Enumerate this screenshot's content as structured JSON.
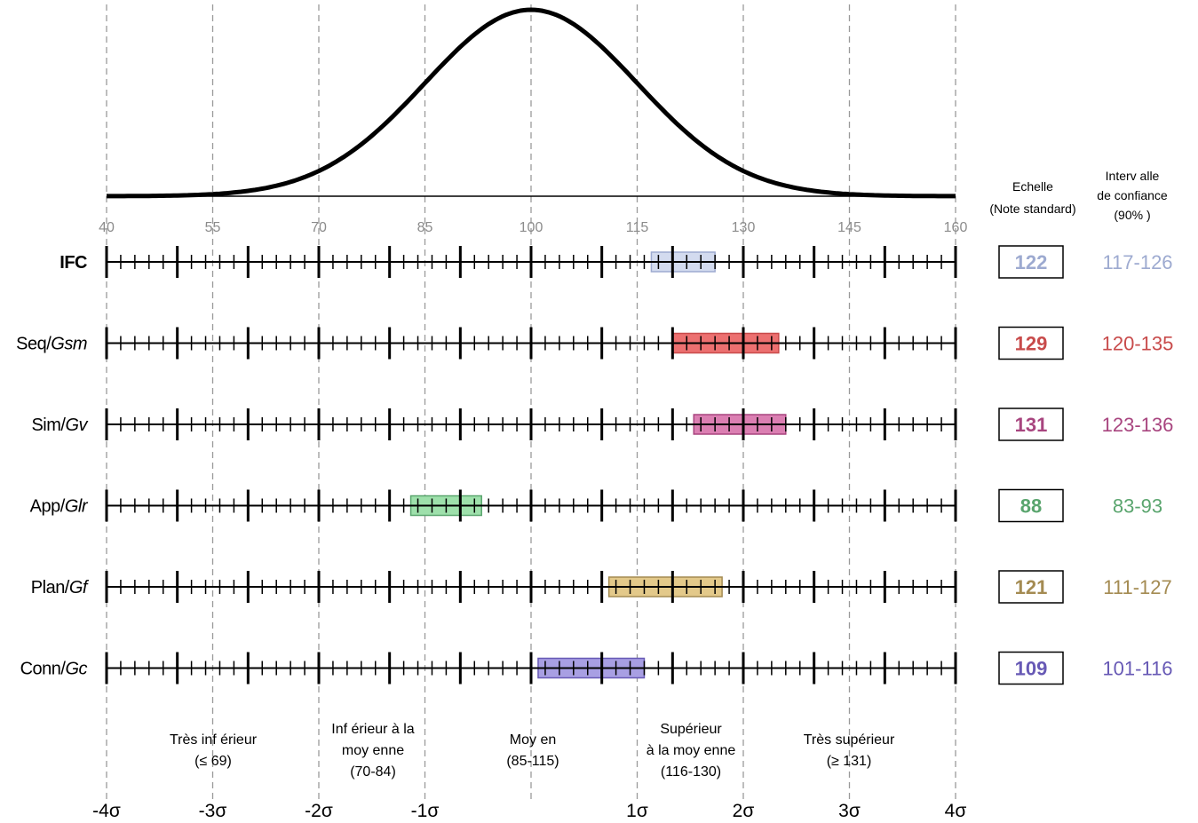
{
  "chart_data": {
    "type": "interval",
    "title": "",
    "axis": {
      "min": 40,
      "max": 160,
      "minor_step": 2,
      "major_step": 10,
      "tick_labels": [
        "40",
        "55",
        "70",
        "85",
        "100",
        "115",
        "130",
        "145",
        "160"
      ],
      "sigma_labels": [
        "-4σ",
        "-3σ",
        "-2σ",
        "-1σ",
        "1σ",
        "2σ",
        "3σ",
        "4σ"
      ],
      "grid_lines": "dashed at each labelled score"
    },
    "curve": {
      "type": "normal",
      "mean": 100,
      "sd": 15
    },
    "header": {
      "scale": [
        "Echelle",
        "(Note standard)"
      ],
      "confidence": [
        "Interv alle",
        "de confiance",
        "(90% )"
      ]
    },
    "rows": [
      {
        "label": "IFC",
        "label_italic": "",
        "bold": true,
        "score": "122",
        "interval": "117-126",
        "low": 117,
        "high": 126,
        "color": "#9daad0",
        "fill": "#d3dbef"
      },
      {
        "label": "Seq/",
        "label_italic": "Gsm",
        "bold": false,
        "score": "129",
        "interval": "120-135",
        "low": 120,
        "high": 135,
        "color": "#c84b4b",
        "fill": "#ec7070"
      },
      {
        "label": "Sim/",
        "label_italic": "Gv",
        "bold": false,
        "score": "131",
        "interval": "123-136",
        "low": 123,
        "high": 136,
        "color": "#a8457f",
        "fill": "#db7fb2"
      },
      {
        "label": "App/",
        "label_italic": "Glr",
        "bold": false,
        "score": "88",
        "interval": "83-93",
        "low": 83,
        "high": 93,
        "color": "#5aa56e",
        "fill": "#9ee0ab"
      },
      {
        "label": "Plan/",
        "label_italic": "Gf",
        "bold": false,
        "score": "121",
        "interval": "111-127",
        "low": 111,
        "high": 127,
        "color": "#a48b52",
        "fill": "#e3c98a"
      },
      {
        "label": "Conn/",
        "label_italic": "Gc",
        "bold": false,
        "score": "109",
        "interval": "101-116",
        "low": 101,
        "high": 116,
        "color": "#6759b5",
        "fill": "#a89fe3"
      }
    ],
    "categories": [
      {
        "lines": [
          "Très inf érieur",
          "(≤ 69)"
        ]
      },
      {
        "lines": [
          "Inf érieur à la",
          "moy enne",
          "(70-84)"
        ]
      },
      {
        "lines": [
          "Moy en",
          "(85-115)"
        ]
      },
      {
        "lines": [
          "Supérieur",
          "à la moy enne",
          "(116-130)"
        ]
      },
      {
        "lines": [
          "Très supérieur",
          "(≥ 131)"
        ]
      }
    ]
  }
}
